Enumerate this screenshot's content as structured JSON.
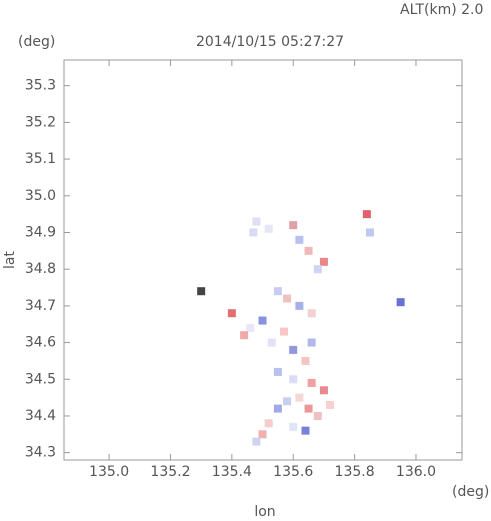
{
  "chart_data": {
    "type": "scatter",
    "title": "2014/10/15 05:27:27",
    "annotation": "ALT(km) 2.0",
    "y_unit": "(deg)",
    "x_unit": "(deg)",
    "ylabel": "lat",
    "xlabel": "lon",
    "xlim": [
      134.853,
      136.15
    ],
    "ylim": [
      34.28,
      35.37
    ],
    "xticks": [
      {
        "value": 135.0,
        "label": "135.0"
      },
      135.2,
      135.4,
      135.6,
      135.8,
      {
        "value": 136.0,
        "label": "136.0"
      }
    ],
    "yticks": [
      34.3,
      34.4,
      34.5,
      34.6,
      34.7,
      34.8,
      34.9,
      {
        "value": 35.0,
        "label": "35.0"
      },
      35.1,
      35.2,
      35.3
    ],
    "x": [
      135.48,
      135.52,
      135.47,
      135.6,
      135.62,
      135.65,
      135.7,
      135.68,
      135.84,
      135.85,
      135.55,
      135.58,
      135.62,
      135.66,
      135.5,
      135.46,
      135.44,
      135.53,
      135.57,
      135.6,
      135.64,
      135.55,
      135.6,
      135.66,
      135.7,
      135.62,
      135.58,
      135.65,
      135.68,
      135.55,
      135.52,
      135.6,
      135.64,
      135.5,
      135.48,
      135.72,
      135.95,
      135.3,
      135.4,
      135.66
    ],
    "y": [
      34.93,
      34.91,
      34.9,
      34.92,
      34.88,
      34.85,
      34.82,
      34.8,
      34.95,
      34.9,
      34.74,
      34.72,
      34.7,
      34.68,
      34.66,
      34.64,
      34.62,
      34.6,
      34.63,
      34.58,
      34.55,
      34.52,
      34.5,
      34.49,
      34.47,
      34.45,
      34.44,
      34.42,
      34.4,
      34.42,
      34.38,
      34.37,
      34.36,
      34.35,
      34.33,
      34.43,
      34.71,
      34.74,
      34.68,
      34.6
    ],
    "point_colors": [
      "#dde0f5",
      "#e6e6f8",
      "#d8dcf2",
      "#e0a0a8",
      "#b8c0ee",
      "#f0b8b8",
      "#e88888",
      "#d0d4f0",
      "#e06070",
      "#c0c8f0",
      "#c8ccf2",
      "#f0c0c0",
      "#a8b0e8",
      "#f4d0d0",
      "#8890e0",
      "#e8e8f6",
      "#f0a8a8",
      "#e0e2f6",
      "#f8c8c8",
      "#9098e0",
      "#f4c4c4",
      "#b8c0ee",
      "#d8dcf4",
      "#f0a0a0",
      "#e88890",
      "#f4d8d8",
      "#c8d0f0",
      "#ec9898",
      "#f0c0c0",
      "#a0a8e8",
      "#f4cccc",
      "#e0e4f8",
      "#7880d8",
      "#f0b0b0",
      "#d0d4f0",
      "#f8d0d0",
      "#6870d0",
      "#444444",
      "#e07070",
      "#b0b8ec"
    ]
  }
}
